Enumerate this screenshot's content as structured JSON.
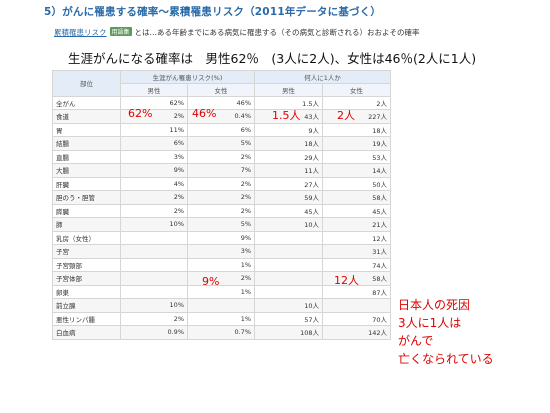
{
  "title": "5）がんに罹患する確率～累積罹患リスク（2011年データに基づく）",
  "definition": {
    "term": "累積罹患リスク",
    "badge": "用語集",
    "text": "とは…ある年齢までにある病気に罹患する（その病気と診断される）おおよその確率"
  },
  "headline": "生涯がんになる確率は　男性62％　(3人に2人)、女性は46％(2人に1人)",
  "table": {
    "col_site": "部位",
    "col_risk": "生涯がん罹患リスク(%)",
    "col_people": "何人に1人か",
    "male": "男性",
    "female": "女性",
    "rows": [
      {
        "site": "全がん",
        "m": "62%",
        "f": "46%",
        "pm": "1.5人",
        "pf": "2人"
      },
      {
        "site": "食道",
        "m": "2%",
        "f": "0.4%",
        "pm": "43人",
        "pf": "227人"
      },
      {
        "site": "胃",
        "m": "11%",
        "f": "6%",
        "pm": "9人",
        "pf": "18人"
      },
      {
        "site": "結腸",
        "m": "6%",
        "f": "5%",
        "pm": "18人",
        "pf": "19人"
      },
      {
        "site": "直腸",
        "m": "3%",
        "f": "2%",
        "pm": "29人",
        "pf": "53人"
      },
      {
        "site": "大腸",
        "m": "9%",
        "f": "7%",
        "pm": "11人",
        "pf": "14人"
      },
      {
        "site": "肝臓",
        "m": "4%",
        "f": "2%",
        "pm": "27人",
        "pf": "50人"
      },
      {
        "site": "胆のう・胆管",
        "m": "2%",
        "f": "2%",
        "pm": "59人",
        "pf": "58人"
      },
      {
        "site": "膵臓",
        "m": "2%",
        "f": "2%",
        "pm": "45人",
        "pf": "45人"
      },
      {
        "site": "肺",
        "m": "10%",
        "f": "5%",
        "pm": "10人",
        "pf": "21人"
      },
      {
        "site": "乳房（女性）",
        "m": "",
        "f": "9%",
        "pm": "",
        "pf": "12人"
      },
      {
        "site": "子宮",
        "m": "",
        "f": "3%",
        "pm": "",
        "pf": "31人"
      },
      {
        "site": "子宮頸部",
        "m": "",
        "f": "1%",
        "pm": "",
        "pf": "74人"
      },
      {
        "site": "子宮体部",
        "m": "",
        "f": "2%",
        "pm": "",
        "pf": "58人"
      },
      {
        "site": "卵巣",
        "m": "",
        "f": "1%",
        "pm": "",
        "pf": "87人"
      },
      {
        "site": "前立腺",
        "m": "10%",
        "f": "",
        "pm": "10人",
        "pf": ""
      },
      {
        "site": "悪性リンパ腫",
        "m": "2%",
        "f": "1%",
        "pm": "57人",
        "pf": "70人"
      },
      {
        "site": "白血病",
        "m": "0.9%",
        "f": "0.7%",
        "pm": "108人",
        "pf": "142人"
      }
    ]
  },
  "red_annotations": {
    "a_m": "62%",
    "a_f": "46%",
    "a_pm": "1.5人",
    "a_pf": "2人",
    "breast_f": "9%",
    "breast_pf": "12人"
  },
  "note": {
    "line1": "日本人の死因",
    "line2": "3人に1人は",
    "line3": "がんで",
    "line4": "亡くなられている"
  }
}
